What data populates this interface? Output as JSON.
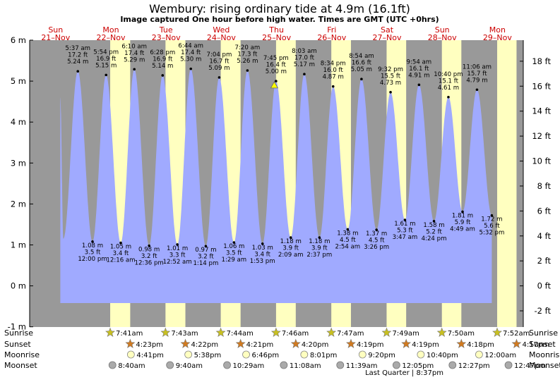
{
  "title": "Wembury: rising  ordinary tide at 4.9m (16.1ft)",
  "subtitle": "Image captured One hour before high water. Times are GMT (UTC +0hrs)",
  "days": [
    {
      "dow": "Sun",
      "date": "21–Nov"
    },
    {
      "dow": "Mon",
      "date": "22–Nov"
    },
    {
      "dow": "Tue",
      "date": "23–Nov"
    },
    {
      "dow": "Wed",
      "date": "24–Nov"
    },
    {
      "dow": "Thu",
      "date": "25–Nov"
    },
    {
      "dow": "Fri",
      "date": "26–Nov"
    },
    {
      "dow": "Sat",
      "date": "27–Nov"
    },
    {
      "dow": "Sun",
      "date": "28–Nov"
    },
    {
      "dow": "Mon",
      "date": "29–Nov"
    }
  ],
  "colors": {
    "day": "#ffffc0",
    "night": "#999999",
    "tide": "#a0aaff",
    "date_text": "#cc0000"
  },
  "chart_data": {
    "type": "area",
    "y_left_label_unit": "m",
    "y_right_label_unit": "ft",
    "y_left_ticks": [
      "6 m",
      "5 m",
      "4 m",
      "3 m",
      "2 m",
      "1 m",
      "0 m",
      "-1 m"
    ],
    "y_right_ticks": [
      "18 ft",
      "16 ft",
      "14 ft",
      "12 ft",
      "10 ft",
      "8 ft",
      "6 ft",
      "4 ft",
      "2 ft",
      "0 ft",
      "-2 ft"
    ],
    "ylim_m": [
      -1,
      6
    ],
    "current": {
      "time": "7:45 pm",
      "height_ft": "16.4 ft",
      "height_m": "5.00 m"
    },
    "extremes": [
      {
        "type": "high",
        "t": 17.62,
        "time": "5:37 am",
        "ft": "17.2 ft",
        "m": "5.24 m",
        "val": 5.24
      },
      {
        "type": "low",
        "t": 24.0,
        "time": "12:00 pm",
        "ft": "3.5 ft",
        "m": "1.08 m",
        "val": 1.08
      },
      {
        "type": "high",
        "t": 29.9,
        "time": "5:54 pm",
        "ft": "16.9 ft",
        "m": "5.15 m",
        "val": 5.15
      },
      {
        "type": "low",
        "t": 36.27,
        "time": "12:16 am",
        "ft": "3.4 ft",
        "m": "1.05 m",
        "val": 1.05
      },
      {
        "type": "high",
        "t": 42.17,
        "time": "6:10 am",
        "ft": "17.4 ft",
        "m": "5.29 m",
        "val": 5.29
      },
      {
        "type": "low",
        "t": 48.6,
        "time": "12:36 pm",
        "ft": "3.2 ft",
        "m": "0.98 m",
        "val": 0.98
      },
      {
        "type": "high",
        "t": 54.47,
        "time": "6:28 pm",
        "ft": "16.9 ft",
        "m": "5.14 m",
        "val": 5.14
      },
      {
        "type": "low",
        "t": 60.87,
        "time": "12:52 am",
        "ft": "3.3 ft",
        "m": "1.01 m",
        "val": 1.01
      },
      {
        "type": "high",
        "t": 66.73,
        "time": "6:44 am",
        "ft": "17.4 ft",
        "m": "5.30 m",
        "val": 5.3
      },
      {
        "type": "low",
        "t": 73.23,
        "time": "1:14 pm",
        "ft": "3.2 ft",
        "m": "0.97 m",
        "val": 0.97
      },
      {
        "type": "high",
        "t": 79.07,
        "time": "7:04 pm",
        "ft": "16.7 ft",
        "m": "5.09 m",
        "val": 5.09
      },
      {
        "type": "low",
        "t": 85.48,
        "time": "1:29 am",
        "ft": "3.5 ft",
        "m": "1.06 m",
        "val": 1.06
      },
      {
        "type": "high",
        "t": 91.33,
        "time": "7:20 am",
        "ft": "17.3 ft",
        "m": "5.26 m",
        "val": 5.26
      },
      {
        "type": "low",
        "t": 97.88,
        "time": "1:53 pm",
        "ft": "3.4 ft",
        "m": "1.03 m",
        "val": 1.03
      },
      {
        "type": "high",
        "t": 103.75,
        "time": "7:45 pm",
        "ft": "16.4 ft",
        "m": "5.00 m",
        "val": 5.0
      },
      {
        "type": "low",
        "t": 110.15,
        "time": "2:09 am",
        "ft": "3.9 ft",
        "m": "1.18 m",
        "val": 1.18
      },
      {
        "type": "high",
        "t": 116.05,
        "time": "8:03 am",
        "ft": "17.0 ft",
        "m": "5.17 m",
        "val": 5.17
      },
      {
        "type": "low",
        "t": 122.62,
        "time": "2:37 pm",
        "ft": "3.9 ft",
        "m": "1.18 m",
        "val": 1.18
      },
      {
        "type": "high",
        "t": 128.57,
        "time": "8:34 pm",
        "ft": "16.0 ft",
        "m": "4.87 m",
        "val": 4.87
      },
      {
        "type": "low",
        "t": 134.9,
        "time": "2:54 am",
        "ft": "4.5 ft",
        "m": "1.38 m",
        "val": 1.38
      },
      {
        "type": "high",
        "t": 140.9,
        "time": "8:54 am",
        "ft": "16.6 ft",
        "m": "5.05 m",
        "val": 5.05
      },
      {
        "type": "low",
        "t": 147.43,
        "time": "3:26 pm",
        "ft": "4.5 ft",
        "m": "1.37 m",
        "val": 1.37
      },
      {
        "type": "high",
        "t": 153.53,
        "time": "9:32 pm",
        "ft": "15.5 ft",
        "m": "4.73 m",
        "val": 4.73
      },
      {
        "type": "low",
        "t": 159.78,
        "time": "3:47 am",
        "ft": "5.3 ft",
        "m": "1.61 m",
        "val": 1.61
      },
      {
        "type": "high",
        "t": 165.9,
        "time": "9:54 am",
        "ft": "16.1 ft",
        "m": "4.91 m",
        "val": 4.91
      },
      {
        "type": "low",
        "t": 172.4,
        "time": "4:24 pm",
        "ft": "5.2 ft",
        "m": "1.58 m",
        "val": 1.58
      },
      {
        "type": "high",
        "t": 178.67,
        "time": "10:40 pm",
        "ft": "15.1 ft",
        "m": "4.61 m",
        "val": 4.61
      },
      {
        "type": "low",
        "t": 184.82,
        "time": "4:49 am",
        "ft": "5.9 ft",
        "m": "1.81 m",
        "val": 1.81
      },
      {
        "type": "high",
        "t": 191.1,
        "time": "11:06 am",
        "ft": "15.7 ft",
        "m": "4.79 m",
        "val": 4.79
      },
      {
        "type": "low",
        "t": 197.53,
        "time": "5:32 pm",
        "ft": "5.6 ft",
        "m": "1.72 m",
        "val": 1.72
      }
    ]
  },
  "sun_moon": {
    "labels": {
      "sunrise": "Sunrise",
      "sunset": "Sunset",
      "moonrise": "Moonrise",
      "moonset": "Moonset"
    },
    "sunrise": [
      "7:41am",
      "7:43am",
      "7:44am",
      "7:46am",
      "7:47am",
      "7:49am",
      "7:50am",
      "7:52am"
    ],
    "sunset": [
      "4:23pm",
      "4:22pm",
      "4:21pm",
      "4:20pm",
      "4:19pm",
      "4:19pm",
      "4:18pm",
      "4:17pm"
    ],
    "moonrise": [
      "4:41pm",
      "5:38pm",
      "6:46pm",
      "8:01pm",
      "9:20pm",
      "10:40pm",
      "12:00am"
    ],
    "moonset": [
      "8:40am",
      "9:40am",
      "10:29am",
      "11:08am",
      "11:39am",
      "12:05pm",
      "12:27pm",
      "12:47pm"
    ],
    "moon_phase": "Last Quarter | 8:37pm"
  }
}
